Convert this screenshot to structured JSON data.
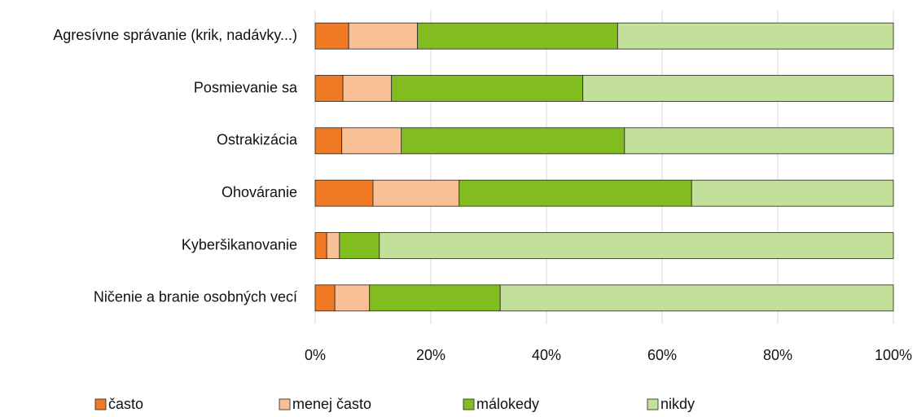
{
  "chart_data": {
    "type": "stacked_barh",
    "categories": [
      "Agresívne správanie (krik, nadávky...)",
      "Posmievanie sa",
      "Ostrakizácia",
      "Ohováranie",
      "Kyberšikanovanie",
      "Ničenie a branie osobných vecí"
    ],
    "series": [
      {
        "name": "často",
        "color": "#f07a24",
        "values": [
          5.8,
          4.8,
          4.6,
          10.0,
          2.0,
          3.4
        ]
      },
      {
        "name": "menej často",
        "color": "#f9c096",
        "values": [
          11.9,
          8.4,
          10.3,
          14.9,
          2.2,
          6.0
        ]
      },
      {
        "name": "málokedy",
        "color": "#82bd1f",
        "values": [
          34.6,
          33.1,
          38.6,
          40.2,
          6.9,
          22.6
        ]
      },
      {
        "name": "nikdy",
        "color": "#c2e09a",
        "values": [
          47.7,
          53.7,
          46.5,
          34.9,
          88.9,
          68.0
        ]
      }
    ],
    "xlim": [
      0,
      100
    ],
    "xticks": [
      {
        "value": 0,
        "label": "0%"
      },
      {
        "value": 20,
        "label": "20%"
      },
      {
        "value": 40,
        "label": "40%"
      },
      {
        "value": 60,
        "label": "60%"
      },
      {
        "value": 80,
        "label": "80%"
      },
      {
        "value": 100,
        "label": "100%"
      }
    ],
    "grid": true
  }
}
